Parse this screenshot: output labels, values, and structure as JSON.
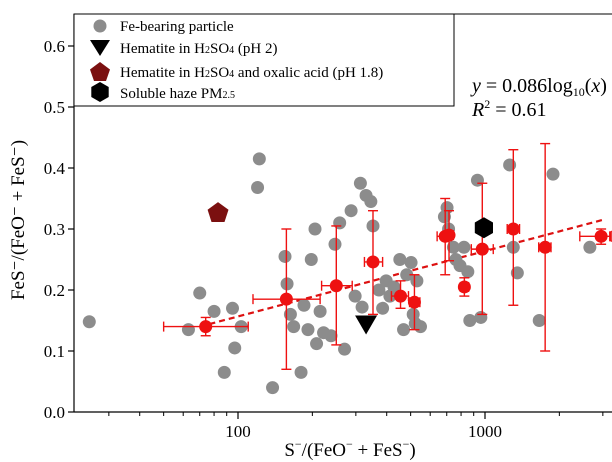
{
  "chart_data": {
    "type": "scatter",
    "x_scale": "log",
    "xlim": [
      20,
      3500
    ],
    "ylim": [
      0,
      0.65
    ],
    "xticks": [
      100,
      1000
    ],
    "yticks": [
      0.0,
      0.1,
      0.2,
      0.3,
      0.4,
      0.5,
      0.6
    ],
    "xlabel": {
      "pre": "S",
      "sup": "−",
      "post": "/(FeO",
      "sup2": "−",
      "post2": " + FeS",
      "sup3": "−",
      "post3": ")"
    },
    "ylabel": "FeS⁻/(FeO⁻ + FeS⁻)",
    "legend_position": "top-left",
    "legend": {
      "fe_particle": "Fe-bearing particle",
      "hematite_h2so4": {
        "pre": "Hematite in H",
        "sub": "2",
        "mid": "SO",
        "sub2": "4",
        "post": " (pH 2)"
      },
      "hematite_oxalic": {
        "pre": "Hematite in H",
        "sub": "2",
        "mid": "SO",
        "sub2": "4",
        "post": " and oxalic acid (pH 1.8)"
      },
      "soluble_haze": {
        "pre": "Soluble haze PM",
        "sub": "2.5"
      }
    },
    "fit": {
      "equation": {
        "lhs": "y",
        "mid": " = 0.086log",
        "sub": "10",
        "open": "(",
        "var": "x",
        "close": ")"
      },
      "r2": {
        "r": "R",
        "sup": "2",
        "rest": " = 0.61"
      },
      "slope": 0.086,
      "x_range": [
        70,
        3000
      ]
    },
    "colors": {
      "fe_particle": "#8c8c8c",
      "binned": "#ee1111",
      "hematite_oxalic": "#7b1010",
      "hematite_h2so4": "#000000",
      "soluble_haze": "#000000",
      "fit_line": "#dd1111"
    },
    "fe_particles": [
      [
        25,
        0.148
      ],
      [
        63,
        0.135
      ],
      [
        70,
        0.195
      ],
      [
        80,
        0.165
      ],
      [
        88,
        0.065
      ],
      [
        95,
        0.17
      ],
      [
        97,
        0.105
      ],
      [
        103,
        0.14
      ],
      [
        122,
        0.415
      ],
      [
        120,
        0.368
      ],
      [
        138,
        0.04
      ],
      [
        155,
        0.255
      ],
      [
        158,
        0.21
      ],
      [
        163,
        0.16
      ],
      [
        168,
        0.14
      ],
      [
        180,
        0.065
      ],
      [
        185,
        0.175
      ],
      [
        192,
        0.135
      ],
      [
        198,
        0.25
      ],
      [
        205,
        0.3
      ],
      [
        208,
        0.112
      ],
      [
        215,
        0.165
      ],
      [
        222,
        0.13
      ],
      [
        238,
        0.125
      ],
      [
        247,
        0.275
      ],
      [
        258,
        0.31
      ],
      [
        270,
        0.103
      ],
      [
        287,
        0.33
      ],
      [
        298,
        0.19
      ],
      [
        313,
        0.375
      ],
      [
        318,
        0.172
      ],
      [
        330,
        0.355
      ],
      [
        345,
        0.345
      ],
      [
        352,
        0.305
      ],
      [
        372,
        0.2
      ],
      [
        385,
        0.17
      ],
      [
        398,
        0.215
      ],
      [
        412,
        0.19
      ],
      [
        428,
        0.205
      ],
      [
        452,
        0.25
      ],
      [
        468,
        0.135
      ],
      [
        482,
        0.225
      ],
      [
        502,
        0.245
      ],
      [
        512,
        0.16
      ],
      [
        522,
        0.145
      ],
      [
        530,
        0.215
      ],
      [
        548,
        0.14
      ],
      [
        685,
        0.32
      ],
      [
        702,
        0.335
      ],
      [
        712,
        0.3
      ],
      [
        745,
        0.27
      ],
      [
        762,
        0.25
      ],
      [
        792,
        0.24
      ],
      [
        822,
        0.27
      ],
      [
        852,
        0.23
      ],
      [
        868,
        0.15
      ],
      [
        932,
        0.38
      ],
      [
        962,
        0.155
      ],
      [
        1258,
        0.405
      ],
      [
        1302,
        0.27
      ],
      [
        1352,
        0.228
      ],
      [
        1658,
        0.15
      ],
      [
        1885,
        0.39
      ],
      [
        2658,
        0.27
      ]
    ],
    "binned_means": [
      {
        "x": 74,
        "y": 0.14,
        "xerr": [
          50,
          110
        ],
        "yerr": [
          0.125,
          0.155
        ]
      },
      {
        "x": 157,
        "y": 0.185,
        "xerr": [
          115,
          215
        ],
        "yerr": [
          0.07,
          0.3
        ]
      },
      {
        "x": 250,
        "y": 0.207,
        "xerr": [
          218,
          290
        ],
        "yerr": [
          0.11,
          0.305
        ]
      },
      {
        "x": 352,
        "y": 0.246,
        "xerr": [
          325,
          385
        ],
        "yerr": [
          0.16,
          0.33
        ]
      },
      {
        "x": 455,
        "y": 0.19,
        "xerr": [
          418,
          490
        ],
        "yerr": [
          0.17,
          0.215
        ]
      },
      {
        "x": 518,
        "y": 0.18,
        "xerr": [
          495,
          545
        ],
        "yerr": [
          0.135,
          0.225
        ]
      },
      {
        "x": 690,
        "y": 0.288,
        "xerr": [
          640,
          730
        ],
        "yerr": [
          0.225,
          0.35
        ]
      },
      {
        "x": 715,
        "y": 0.29,
        "xerr": [
          690,
          745
        ],
        "yerr": [
          0.248,
          0.33
        ]
      },
      {
        "x": 825,
        "y": 0.205,
        "xerr": [
          795,
          858
        ],
        "yerr": [
          0.19,
          0.22
        ]
      },
      {
        "x": 975,
        "y": 0.267,
        "xerr": [
          880,
          1080
        ],
        "yerr": [
          0.16,
          0.375
        ]
      },
      {
        "x": 1302,
        "y": 0.3,
        "xerr": [
          1230,
          1380
        ],
        "yerr": [
          0.175,
          0.43
        ]
      },
      {
        "x": 1752,
        "y": 0.27,
        "xerr": [
          1650,
          1850
        ],
        "yerr": [
          0.1,
          0.44
        ]
      },
      {
        "x": 2952,
        "y": 0.288,
        "xerr": [
          2420,
          3400
        ],
        "yerr": [
          0.275,
          0.3
        ]
      },
      {
        "x": 3400,
        "y": 0.288,
        "xerr": [
          3200,
          3500
        ],
        "yerr": [
          0.28,
          0.296
        ]
      }
    ],
    "hematite_oxalic_point": [
      83,
      0.326
    ],
    "hematite_h2so4_point": [
      330,
      0.145
    ],
    "soluble_haze_point": [
      990,
      0.302
    ]
  }
}
